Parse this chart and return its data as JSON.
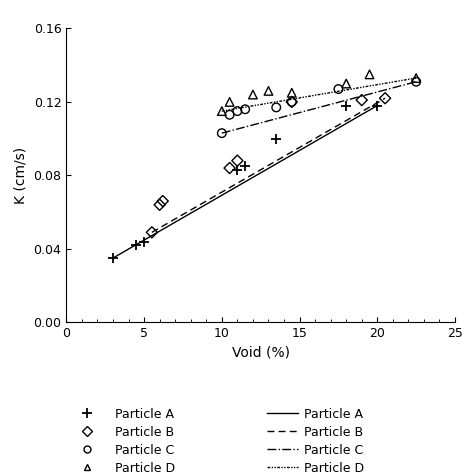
{
  "xlabel": "Void (%)",
  "ylabel": "K (cm/s)",
  "xlim": [
    0,
    25
  ],
  "ylim": [
    0,
    0.16
  ],
  "xticks": [
    0,
    5,
    10,
    15,
    20,
    25
  ],
  "yticks": [
    0,
    0.04,
    0.08,
    0.12,
    0.16
  ],
  "particle_A_scatter": [
    [
      3.0,
      0.035
    ],
    [
      4.5,
      0.042
    ],
    [
      5.0,
      0.044
    ],
    [
      11.0,
      0.083
    ],
    [
      11.5,
      0.085
    ],
    [
      13.5,
      0.1
    ],
    [
      18.0,
      0.118
    ],
    [
      20.0,
      0.118
    ]
  ],
  "particle_B_scatter": [
    [
      5.5,
      0.049
    ],
    [
      6.0,
      0.064
    ],
    [
      6.2,
      0.066
    ],
    [
      10.5,
      0.084
    ],
    [
      11.0,
      0.088
    ],
    [
      14.5,
      0.12
    ],
    [
      19.0,
      0.121
    ],
    [
      20.5,
      0.122
    ]
  ],
  "particle_C_scatter": [
    [
      10.0,
      0.103
    ],
    [
      10.5,
      0.113
    ],
    [
      11.0,
      0.115
    ],
    [
      11.5,
      0.116
    ],
    [
      13.5,
      0.117
    ],
    [
      14.5,
      0.12
    ],
    [
      17.5,
      0.127
    ],
    [
      22.5,
      0.131
    ]
  ],
  "particle_D_scatter": [
    [
      10.0,
      0.115
    ],
    [
      10.5,
      0.12
    ],
    [
      12.0,
      0.124
    ],
    [
      13.0,
      0.126
    ],
    [
      14.5,
      0.125
    ],
    [
      18.0,
      0.13
    ],
    [
      19.5,
      0.135
    ],
    [
      22.5,
      0.133
    ]
  ],
  "particle_A_line": [
    [
      3.0,
      0.035
    ],
    [
      20.0,
      0.118
    ]
  ],
  "particle_B_line": [
    [
      5.5,
      0.049
    ],
    [
      20.5,
      0.122
    ]
  ],
  "particle_C_line": [
    [
      10.0,
      0.103
    ],
    [
      22.5,
      0.131
    ]
  ],
  "particle_D_line": [
    [
      10.0,
      0.115
    ],
    [
      22.5,
      0.133
    ]
  ],
  "color": "#000000",
  "figsize": [
    4.74,
    4.74
  ],
  "dpi": 100
}
